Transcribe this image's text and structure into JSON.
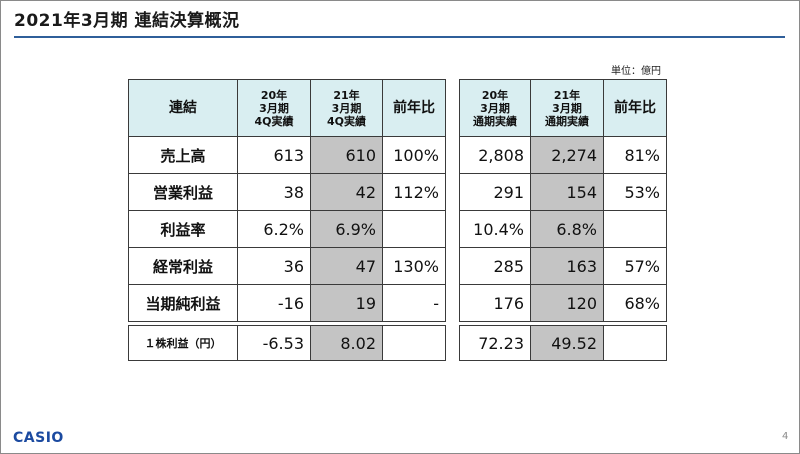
{
  "title": "2021年3月期 連結決算概況",
  "unit": "単位：億円",
  "left_table": {
    "headers": [
      "連結",
      "20年\n3月期\n4Q実績",
      "21年\n3月期\n4Q実績",
      "前年比"
    ],
    "rows": [
      {
        "label": "売上高",
        "prev": "613",
        "cur": "610",
        "yoy": "100%"
      },
      {
        "label": "営業利益",
        "prev": "38",
        "cur": "42",
        "yoy": "112%"
      },
      {
        "label": "利益率",
        "prev": "6.2%",
        "cur": "6.9%",
        "yoy": ""
      },
      {
        "label": "経常利益",
        "prev": "36",
        "cur": "47",
        "yoy": "130%"
      },
      {
        "label": "当期純利益",
        "prev": "-16",
        "cur": "19",
        "yoy": "-"
      }
    ],
    "eps": {
      "label": "１株利益（円）",
      "prev": "-6.53",
      "cur": "8.02",
      "yoy": ""
    }
  },
  "right_table": {
    "headers": [
      "20年\n3月期\n通期実績",
      "21年\n3月期\n通期実績",
      "前年比"
    ],
    "rows": [
      {
        "prev": "2,808",
        "cur": "2,274",
        "yoy": "81%"
      },
      {
        "prev": "291",
        "cur": "154",
        "yoy": "53%"
      },
      {
        "prev": "10.4%",
        "cur": "6.8%",
        "yoy": ""
      },
      {
        "prev": "285",
        "cur": "163",
        "yoy": "57%"
      },
      {
        "prev": "176",
        "cur": "120",
        "yoy": "68%"
      }
    ],
    "eps": {
      "prev": "72.23",
      "cur": "49.52",
      "yoy": ""
    }
  },
  "logo": "CASIO",
  "page_number": "4"
}
